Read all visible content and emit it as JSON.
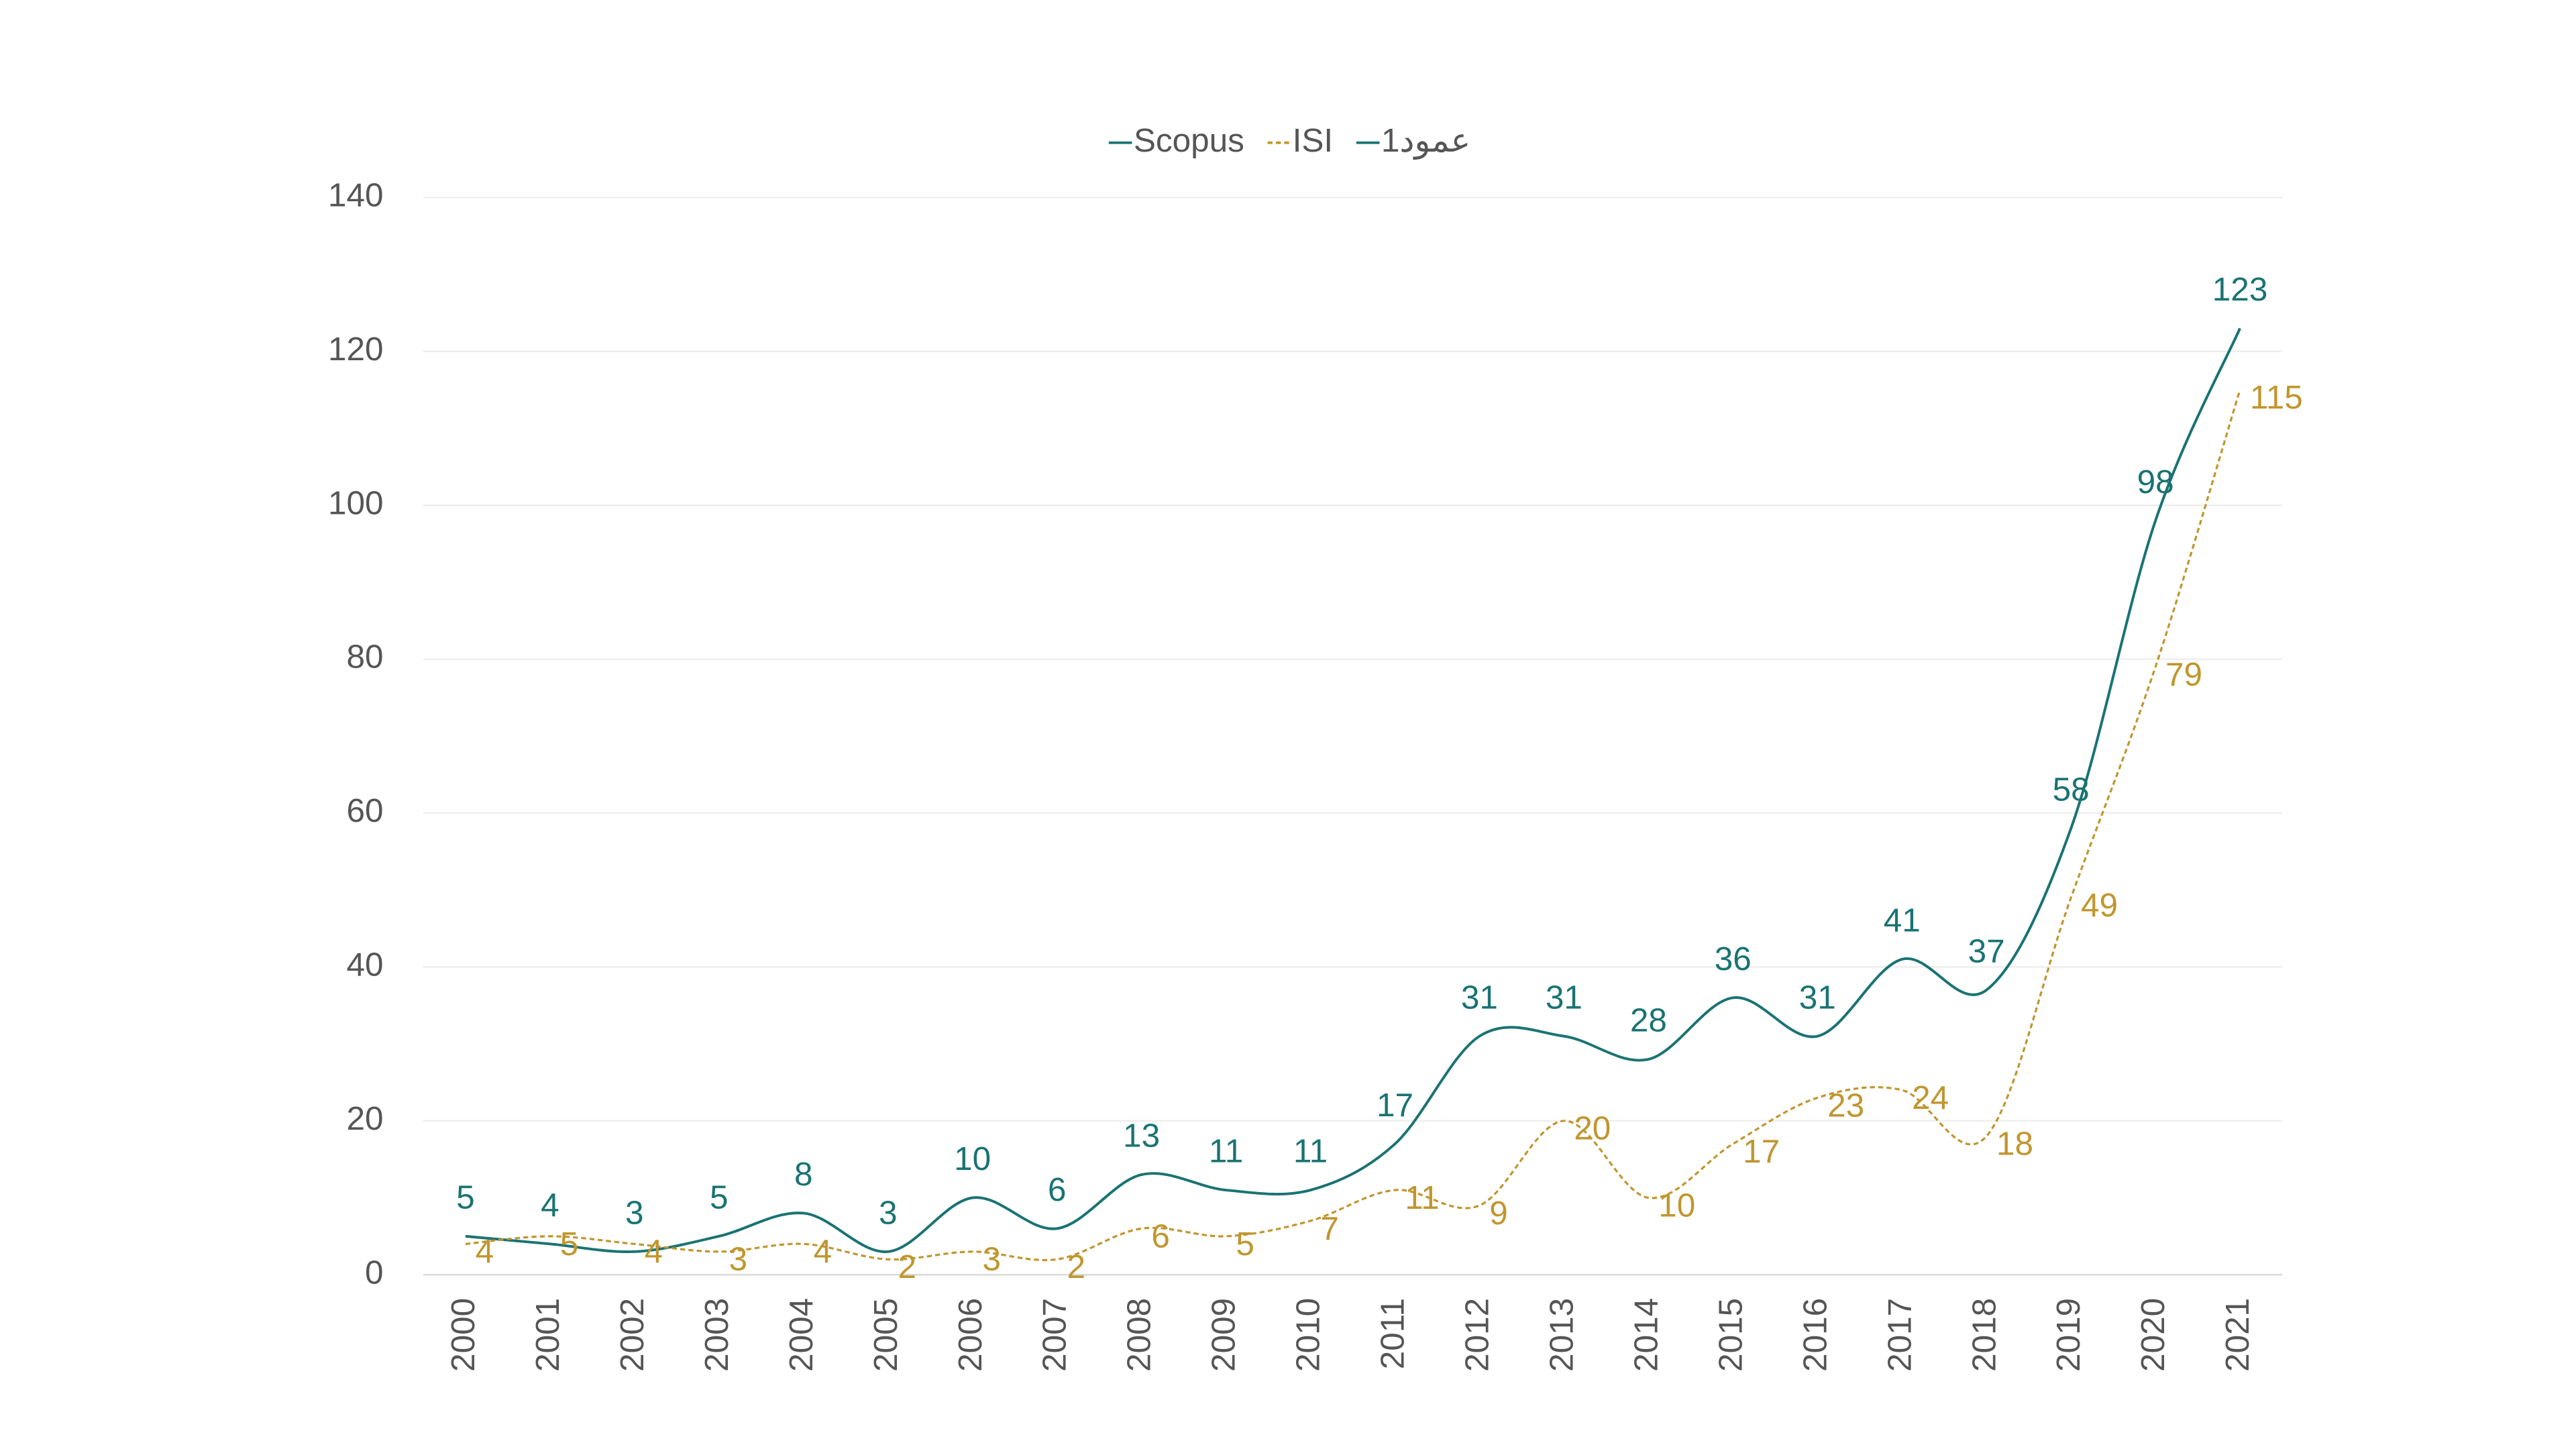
{
  "chart_data": {
    "type": "line",
    "categories": [
      "2000",
      "2001",
      "2002",
      "2003",
      "2004",
      "2005",
      "2006",
      "2007",
      "2008",
      "2009",
      "2010",
      "2011",
      "2012",
      "2013",
      "2014",
      "2015",
      "2016",
      "2017",
      "2018",
      "2019",
      "2020",
      "2021"
    ],
    "series": [
      {
        "name": "Scopus",
        "color": "#1a7373",
        "values": [
          5,
          4,
          3,
          5,
          8,
          3,
          10,
          6,
          13,
          11,
          11,
          17,
          31,
          31,
          28,
          36,
          31,
          41,
          37,
          58,
          98,
          123
        ]
      },
      {
        "name": "ISI",
        "color": "#c0962e",
        "values": [
          4,
          5,
          4,
          3,
          4,
          2,
          3,
          2,
          6,
          5,
          7,
          11,
          9,
          20,
          10,
          17,
          23,
          24,
          18,
          49,
          79,
          115
        ]
      },
      {
        "name": "عمود1",
        "color": "#1a7373",
        "values": [
          null,
          null,
          null,
          null,
          null,
          null,
          null,
          null,
          null,
          null,
          null,
          null,
          null,
          null,
          null,
          null,
          null,
          null,
          null,
          null,
          null,
          null
        ]
      }
    ],
    "ylim": [
      0,
      140
    ],
    "yticks": [
      0,
      20,
      40,
      60,
      80,
      100,
      120,
      140
    ],
    "grid": true,
    "legend": "top"
  }
}
